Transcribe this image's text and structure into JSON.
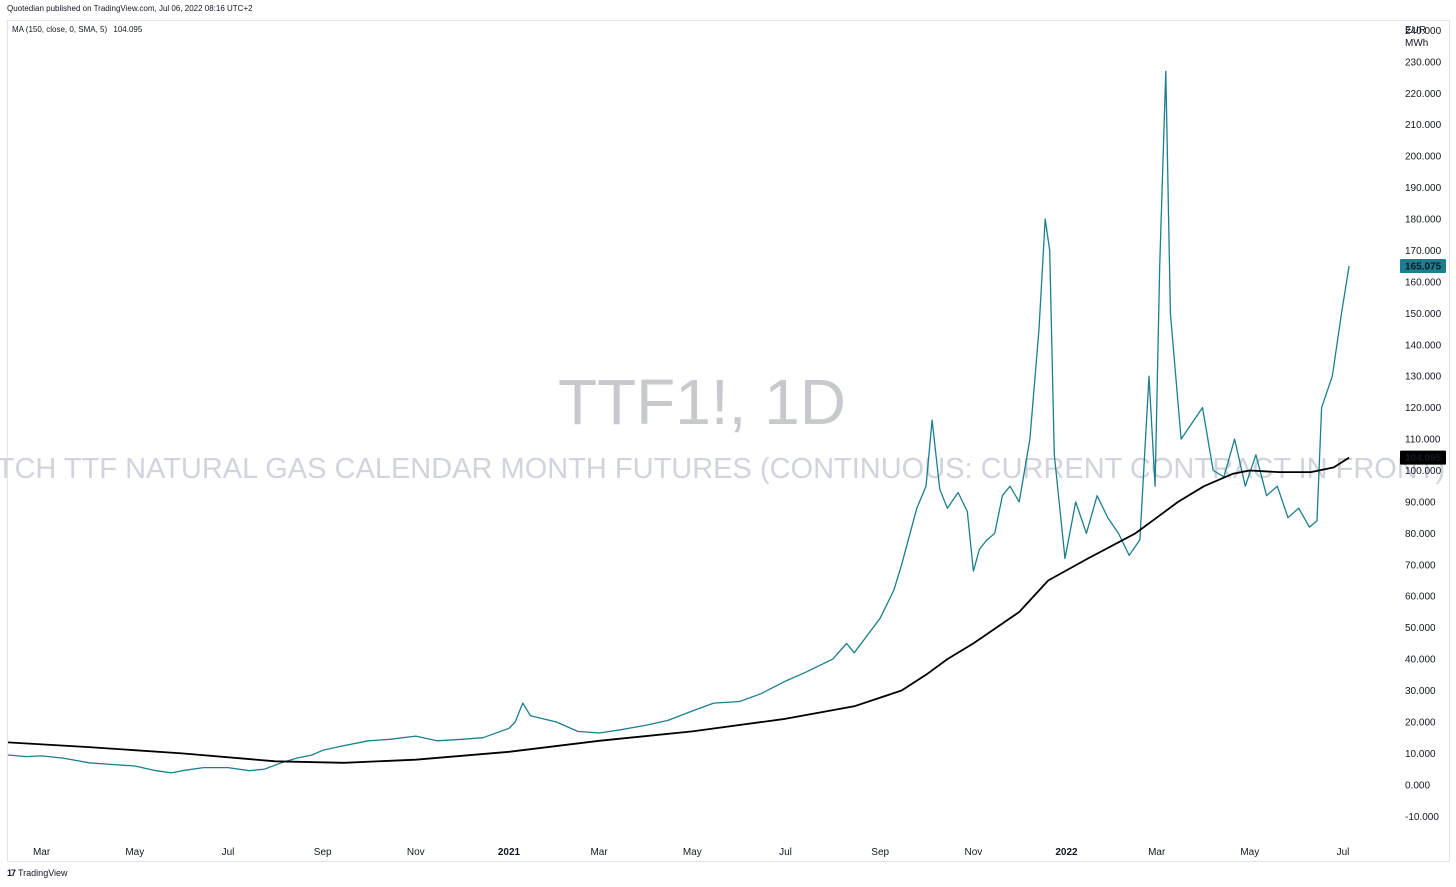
{
  "header": {
    "published": "Quotedian published on TradingView.com, Jul 06, 2022 08:16 UTC+2"
  },
  "indicator": {
    "label": "MA (150, close, 0, SMA, 5)",
    "value": "104.095"
  },
  "watermark": {
    "symbol": "TTF1!, 1D",
    "description": "DUTCH TTF NATURAL GAS CALENDAR MONTH FUTURES (CONTINUOUS: CURRENT CONTRACT IN FRONT)"
  },
  "footer": {
    "brand": "TradingView",
    "logo_glyph": "17"
  },
  "chart_data": {
    "type": "line",
    "y_axis_unit": [
      "EUR",
      "MWh"
    ],
    "ylim": [
      -15,
      243
    ],
    "y_ticks": [
      "240.000",
      "230.000",
      "220.000",
      "210.000",
      "200.000",
      "190.000",
      "180.000",
      "170.000",
      "160.000",
      "150.000",
      "140.000",
      "130.000",
      "120.000",
      "110.000",
      "100.000",
      "90.000",
      "80.000",
      "70.000",
      "60.000",
      "50.000",
      "40.000",
      "30.000",
      "20.000",
      "10.000",
      "0.000",
      "-10.000"
    ],
    "x_ticks": [
      {
        "label": "Mar",
        "date": "2020-03-01",
        "year": false
      },
      {
        "label": "May",
        "date": "2020-05-01",
        "year": false
      },
      {
        "label": "Jul",
        "date": "2020-07-01",
        "year": false
      },
      {
        "label": "Sep",
        "date": "2020-09-01",
        "year": false
      },
      {
        "label": "Nov",
        "date": "2020-11-01",
        "year": false
      },
      {
        "label": "2021",
        "date": "2021-01-01",
        "year": true
      },
      {
        "label": "Mar",
        "date": "2021-03-01",
        "year": false
      },
      {
        "label": "May",
        "date": "2021-05-01",
        "year": false
      },
      {
        "label": "Jul",
        "date": "2021-07-01",
        "year": false
      },
      {
        "label": "Sep",
        "date": "2021-09-01",
        "year": false
      },
      {
        "label": "Nov",
        "date": "2021-11-01",
        "year": false
      },
      {
        "label": "2022",
        "date": "2022-01-01",
        "year": true
      },
      {
        "label": "Mar",
        "date": "2022-03-01",
        "year": false
      },
      {
        "label": "May",
        "date": "2022-05-01",
        "year": false
      },
      {
        "label": "Jul",
        "date": "2022-07-01",
        "year": false
      }
    ],
    "x_range": [
      "2020-02-08",
      "2022-08-06"
    ],
    "series": [
      {
        "color": "#1a7f8e",
        "last_value": "165.075",
        "points": [
          [
            "2020-02-08",
            9.5
          ],
          [
            "2020-02-20",
            9.0
          ],
          [
            "2020-03-01",
            9.2
          ],
          [
            "2020-03-15",
            8.5
          ],
          [
            "2020-04-01",
            7.0
          ],
          [
            "2020-04-15",
            6.5
          ],
          [
            "2020-05-01",
            6.0
          ],
          [
            "2020-05-15",
            4.5
          ],
          [
            "2020-05-25",
            3.8
          ],
          [
            "2020-06-01",
            4.5
          ],
          [
            "2020-06-15",
            5.5
          ],
          [
            "2020-07-01",
            5.5
          ],
          [
            "2020-07-15",
            4.5
          ],
          [
            "2020-07-25",
            5.0
          ],
          [
            "2020-08-05",
            7.0
          ],
          [
            "2020-08-15",
            8.5
          ],
          [
            "2020-08-25",
            9.5
          ],
          [
            "2020-09-01",
            11.0
          ],
          [
            "2020-09-15",
            12.5
          ],
          [
            "2020-10-01",
            14.0
          ],
          [
            "2020-10-15",
            14.5
          ],
          [
            "2020-11-01",
            15.5
          ],
          [
            "2020-11-15",
            14.0
          ],
          [
            "2020-12-01",
            14.5
          ],
          [
            "2020-12-15",
            15.0
          ],
          [
            "2021-01-01",
            18.0
          ],
          [
            "2021-01-05",
            20.0
          ],
          [
            "2021-01-10",
            26.0
          ],
          [
            "2021-01-15",
            22.0
          ],
          [
            "2021-02-01",
            20.0
          ],
          [
            "2021-02-15",
            17.0
          ],
          [
            "2021-03-01",
            16.5
          ],
          [
            "2021-03-15",
            17.5
          ],
          [
            "2021-04-01",
            19.0
          ],
          [
            "2021-04-15",
            20.5
          ],
          [
            "2021-05-01",
            23.5
          ],
          [
            "2021-05-15",
            26.0
          ],
          [
            "2021-06-01",
            26.5
          ],
          [
            "2021-06-15",
            29.0
          ],
          [
            "2021-07-01",
            33.0
          ],
          [
            "2021-07-15",
            36.0
          ],
          [
            "2021-08-01",
            40.0
          ],
          [
            "2021-08-10",
            45.0
          ],
          [
            "2021-08-15",
            42.0
          ],
          [
            "2021-09-01",
            53.0
          ],
          [
            "2021-09-10",
            62.0
          ],
          [
            "2021-09-15",
            70.0
          ],
          [
            "2021-09-25",
            88.0
          ],
          [
            "2021-10-01",
            95.0
          ],
          [
            "2021-10-05",
            116.0
          ],
          [
            "2021-10-10",
            94.0
          ],
          [
            "2021-10-15",
            88.0
          ],
          [
            "2021-10-22",
            93.0
          ],
          [
            "2021-10-28",
            87.0
          ],
          [
            "2021-11-01",
            68.0
          ],
          [
            "2021-11-05",
            75.0
          ],
          [
            "2021-11-10",
            78.0
          ],
          [
            "2021-11-15",
            80.0
          ],
          [
            "2021-11-20",
            92.0
          ],
          [
            "2021-11-25",
            95.0
          ],
          [
            "2021-12-01",
            90.0
          ],
          [
            "2021-12-08",
            110.0
          ],
          [
            "2021-12-14",
            145.0
          ],
          [
            "2021-12-18",
            180.0
          ],
          [
            "2021-12-21",
            170.0
          ],
          [
            "2021-12-24",
            105.0
          ],
          [
            "2021-12-31",
            72.0
          ],
          [
            "2022-01-07",
            90.0
          ],
          [
            "2022-01-14",
            80.0
          ],
          [
            "2022-01-21",
            92.0
          ],
          [
            "2022-01-28",
            85.0
          ],
          [
            "2022-02-04",
            80.0
          ],
          [
            "2022-02-11",
            73.0
          ],
          [
            "2022-02-18",
            78.0
          ],
          [
            "2022-02-24",
            130.0
          ],
          [
            "2022-02-28",
            95.0
          ],
          [
            "2022-03-03",
            165.0
          ],
          [
            "2022-03-07",
            227.0
          ],
          [
            "2022-03-10",
            150.0
          ],
          [
            "2022-03-17",
            110.0
          ],
          [
            "2022-03-24",
            115.0
          ],
          [
            "2022-03-31",
            120.0
          ],
          [
            "2022-04-07",
            100.0
          ],
          [
            "2022-04-14",
            98.0
          ],
          [
            "2022-04-21",
            110.0
          ],
          [
            "2022-04-28",
            95.0
          ],
          [
            "2022-05-05",
            105.0
          ],
          [
            "2022-05-12",
            92.0
          ],
          [
            "2022-05-19",
            95.0
          ],
          [
            "2022-05-26",
            85.0
          ],
          [
            "2022-06-02",
            88.0
          ],
          [
            "2022-06-09",
            82.0
          ],
          [
            "2022-06-14",
            84.0
          ],
          [
            "2022-06-17",
            120.0
          ],
          [
            "2022-06-24",
            130.0
          ],
          [
            "2022-06-30",
            150.0
          ],
          [
            "2022-07-05",
            165.075
          ]
        ]
      },
      {
        "name": "MA (150, close, 0, SMA, 5)",
        "color": "#000000",
        "last_value": "104.095",
        "points": [
          [
            "2020-02-08",
            13.5
          ],
          [
            "2020-04-01",
            12.0
          ],
          [
            "2020-06-01",
            10.0
          ],
          [
            "2020-08-01",
            7.5
          ],
          [
            "2020-09-15",
            7.0
          ],
          [
            "2020-11-01",
            8.0
          ],
          [
            "2021-01-01",
            10.5
          ],
          [
            "2021-03-01",
            14.0
          ],
          [
            "2021-05-01",
            17.0
          ],
          [
            "2021-07-01",
            21.0
          ],
          [
            "2021-08-15",
            25.0
          ],
          [
            "2021-09-15",
            30.0
          ],
          [
            "2021-10-01",
            35.0
          ],
          [
            "2021-10-15",
            40.0
          ],
          [
            "2021-11-01",
            45.0
          ],
          [
            "2021-12-01",
            55.0
          ],
          [
            "2021-12-20",
            65.0
          ],
          [
            "2022-01-15",
            72.0
          ],
          [
            "2022-02-15",
            80.0
          ],
          [
            "2022-03-01",
            85.0
          ],
          [
            "2022-03-15",
            90.0
          ],
          [
            "2022-04-01",
            95.0
          ],
          [
            "2022-04-20",
            99.0
          ],
          [
            "2022-05-01",
            100.0
          ],
          [
            "2022-05-20",
            99.5
          ],
          [
            "2022-06-10",
            99.5
          ],
          [
            "2022-06-25",
            101.0
          ],
          [
            "2022-07-05",
            104.095
          ]
        ]
      }
    ]
  }
}
